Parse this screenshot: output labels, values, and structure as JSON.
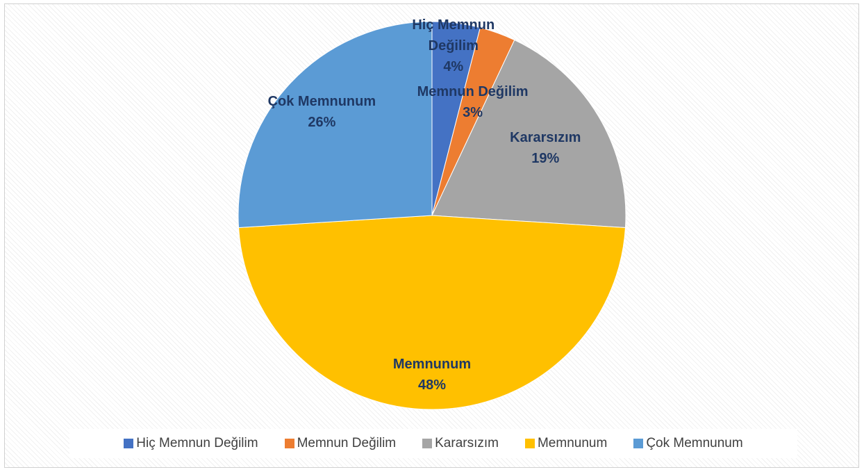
{
  "chart_data": {
    "type": "pie",
    "categories": [
      "Hiç Memnun Değilim",
      "Memnun Değilim",
      "Kararsızım",
      "Memnunum",
      "Çok Memnunum"
    ],
    "values": [
      4,
      3,
      19,
      48,
      26
    ],
    "value_labels": [
      "4%",
      "3%",
      "19%",
      "48%",
      "26%"
    ],
    "colors": [
      "#4472c4",
      "#ed7d31",
      "#a5a5a5",
      "#ffc000",
      "#5b9bd5"
    ],
    "legend": "bottom"
  }
}
